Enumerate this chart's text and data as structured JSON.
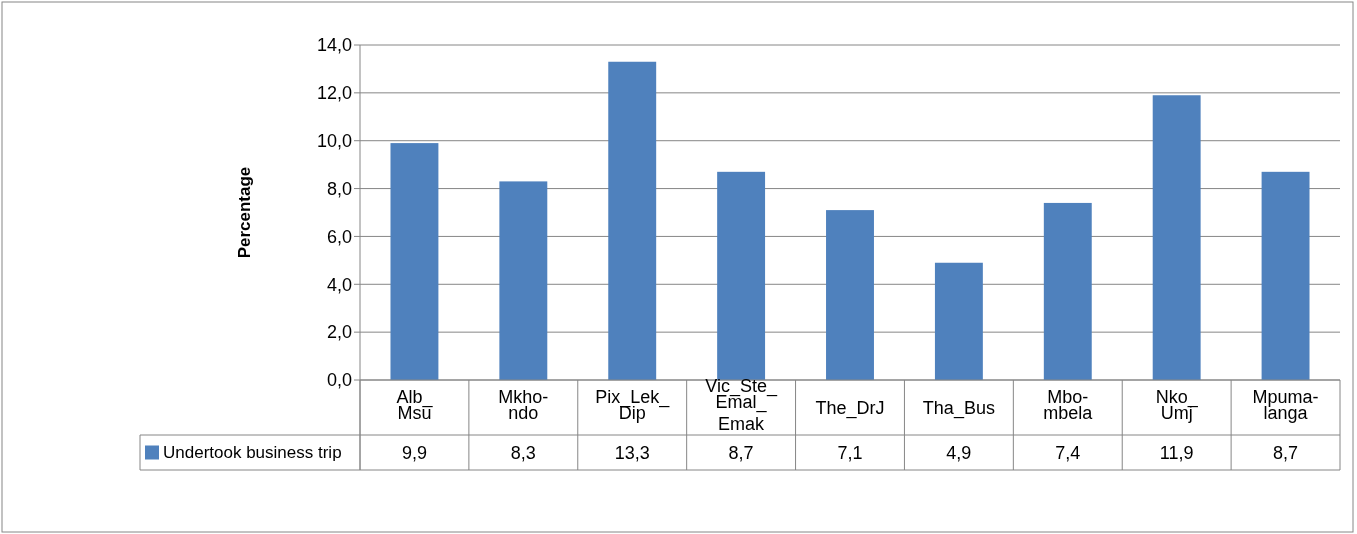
{
  "chart_data": {
    "type": "bar",
    "ylabel": "Percentage",
    "categories": [
      "Alb_\nMsu",
      "Mkho-\nndo",
      "Pix_Lek_\nDip",
      "Vic_Ste_\nEmal_\nEmak",
      "The_DrJ",
      "Tha_Bus",
      "Mbo-\nmbela",
      "Nko_\nUmj",
      "Mpuma-\nlanga"
    ],
    "series": [
      {
        "name": "Undertook business trip",
        "color": "#4f81bd",
        "values": [
          9.9,
          8.3,
          13.3,
          8.7,
          7.1,
          4.9,
          7.4,
          11.9,
          8.7
        ],
        "value_labels": [
          "9,9",
          "8,3",
          "13,3",
          "8,7",
          "7,1",
          "4,9",
          "7,4",
          "11,9",
          "8,7"
        ]
      }
    ],
    "ylim": [
      0,
      14
    ],
    "yticks": [
      {
        "value": 0,
        "label": "0,0"
      },
      {
        "value": 2,
        "label": "2,0"
      },
      {
        "value": 4,
        "label": "4,0"
      },
      {
        "value": 6,
        "label": "6,0"
      },
      {
        "value": 8,
        "label": "8,0"
      },
      {
        "value": 10,
        "label": "10,0"
      },
      {
        "value": 12,
        "label": "12,0"
      },
      {
        "value": 14,
        "label": "14,0"
      }
    ],
    "grid": "y",
    "legend": "bottom"
  }
}
